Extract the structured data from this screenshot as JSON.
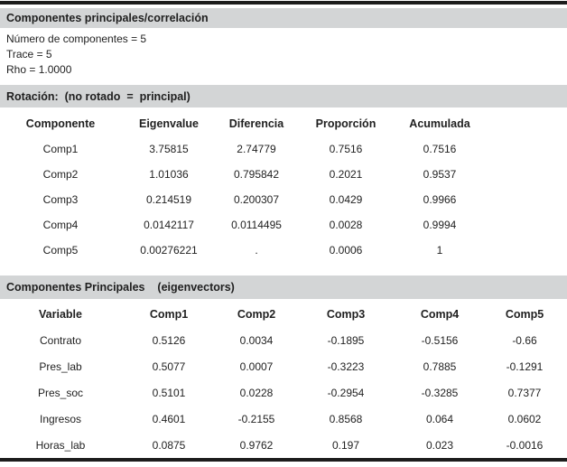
{
  "colors": {
    "bar_background": "#d3d5d6",
    "rule": "#1c1c1c",
    "text": "#1f1f1f",
    "page_background": "#ffffff"
  },
  "header_bar": {
    "title": "Componentes principales/correlación"
  },
  "info_lines": [
    "Número de componentes = 5",
    "Trace = 5",
    "Rho = 1.0000"
  ],
  "rotation_bar": {
    "label": "Rotación:  (no rotado  =  principal)"
  },
  "eigen_table": {
    "columns": [
      "Componente",
      "Eigenvalue",
      "Diferencia",
      "Proporción",
      "Acumulada"
    ],
    "rows": [
      [
        "Comp1",
        "3.75815",
        "2.74779",
        "0.7516",
        "0.7516"
      ],
      [
        "Comp2",
        "1.01036",
        "0.795842",
        "0.2021",
        "0.9537"
      ],
      [
        "Comp3",
        "0.214519",
        "0.200307",
        "0.0429",
        "0.9966"
      ],
      [
        "Comp4",
        "0.0142117",
        "0.0114495",
        "0.0028",
        "0.9994"
      ],
      [
        "Comp5",
        "0.00276221",
        ".",
        "0.0006",
        "1"
      ]
    ]
  },
  "eigenvectors_bar": {
    "label": "Componentes Principales    (eigenvectors)"
  },
  "eigenvectors_table": {
    "columns": [
      "Variable",
      "Comp1",
      "Comp2",
      "Comp3",
      "Comp4",
      "Comp5"
    ],
    "rows": [
      [
        "Contrato",
        "0.5126",
        "0.0034",
        "-0.1895",
        "-0.5156",
        "-0.66"
      ],
      [
        "Pres_lab",
        "0.5077",
        "0.0007",
        "-0.3223",
        "0.7885",
        "-0.1291"
      ],
      [
        "Pres_soc",
        "0.5101",
        "0.0228",
        "-0.2954",
        "-0.3285",
        "0.7377"
      ],
      [
        "Ingresos",
        "0.4601",
        "-0.2155",
        "0.8568",
        "0.064",
        "0.0602"
      ],
      [
        "Horas_lab",
        "0.0875",
        "0.9762",
        "0.197",
        "0.023",
        "-0.0016"
      ]
    ]
  }
}
